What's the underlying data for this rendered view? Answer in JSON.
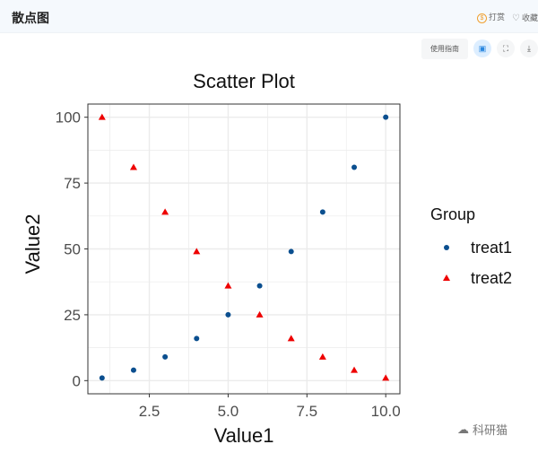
{
  "header": {
    "title": "散点图",
    "reward_label": "打赏",
    "favorite_label": "收藏"
  },
  "toolbar": {
    "guide_label": "使用指南",
    "pdf_icon": "pdf-icon",
    "fullscreen_icon": "fullscreen-icon",
    "download_icon": "download-icon"
  },
  "watermark": {
    "label": "科研猫"
  },
  "chart_data": {
    "type": "scatter",
    "title": "Scatter Plot",
    "xlabel": "Value1",
    "ylabel": "Value2",
    "xlim": [
      0.55,
      10.45
    ],
    "ylim": [
      -5,
      105
    ],
    "x_ticks": [
      2.5,
      5.0,
      7.5,
      10.0
    ],
    "x_tick_labels": [
      "2.5",
      "5.0",
      "7.5",
      "10.0"
    ],
    "y_ticks": [
      0,
      25,
      50,
      75,
      100
    ],
    "y_tick_labels": [
      "0",
      "25",
      "50",
      "75",
      "100"
    ],
    "grid": true,
    "legend": {
      "title": "Group",
      "position": "right"
    },
    "series": [
      {
        "name": "treat1",
        "shape": "circle",
        "color": "#0b4f8f",
        "x": [
          1,
          2,
          3,
          4,
          5,
          6,
          7,
          8,
          9,
          10
        ],
        "y": [
          1,
          4,
          9,
          16,
          25,
          36,
          49,
          64,
          81,
          100
        ]
      },
      {
        "name": "treat2",
        "shape": "triangle",
        "color": "#ee0000",
        "x": [
          1,
          2,
          3,
          4,
          5,
          6,
          7,
          8,
          9,
          10
        ],
        "y": [
          100,
          81,
          64,
          49,
          36,
          25,
          16,
          9,
          4,
          1
        ]
      }
    ]
  }
}
